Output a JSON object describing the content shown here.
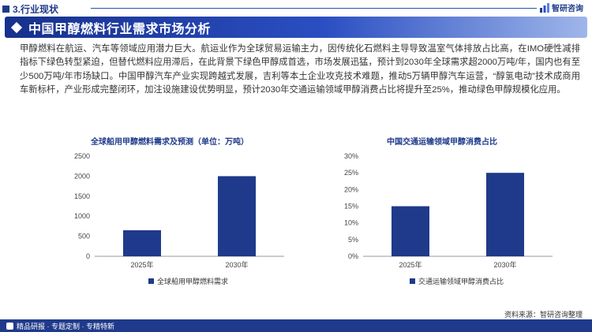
{
  "header": {
    "section_label": "3.行业现状",
    "logo_text": "智研咨询",
    "banner_title": "中国甲醇燃料行业需求市场分析"
  },
  "body_text": "甲醇燃料在航运、汽车等领域应用潜力巨大。航运业作为全球贸易运输主力，因传统化石燃料主导导致温室气体排放占比高，在IMO硬性减排指标下绿色转型紧迫，但替代燃料应用滞后，在此背景下绿色甲醇成首选，市场发展迅猛，预计到2030年全球需求超2000万吨/年，国内也有至少500万吨/年市场缺口。中国甲醇汽车产业实现跨越式发展，吉利等本土企业攻克技术难题，推动5万辆甲醇汽车运营，“醇氢电动”技术成商用车新标杆，产业形成完整闭环，加注设施建设优势明显，预计2030年交通运输领域甲醇消费占比将提升至25%，推动绿色甲醇规模化应用。",
  "chart_data": [
    {
      "type": "bar",
      "title": "全球船用甲醇燃料需求及预测（单位：万吨）",
      "categories": [
        "2025年",
        "2030年"
      ],
      "series": [
        {
          "name": "全球船用甲醇燃料需求",
          "values": [
            650,
            2000
          ]
        }
      ],
      "ylim": [
        0,
        2500
      ],
      "yticks": [
        "0",
        "500",
        "1000",
        "1500",
        "2000",
        "2500"
      ],
      "ytick_values": [
        0,
        500,
        1000,
        1500,
        2000,
        2500
      ],
      "grid": false,
      "legend": "bottom",
      "color": "#1f3a8a"
    },
    {
      "type": "bar",
      "title": "中国交通运输领域甲醇消费占比",
      "categories": [
        "2025年",
        "2030年"
      ],
      "series": [
        {
          "name": "交通运输领域甲醇消费占比",
          "values": [
            15,
            25
          ]
        }
      ],
      "ylim": [
        0,
        30
      ],
      "yticks": [
        "0%",
        "5%",
        "10%",
        "15%",
        "20%",
        "25%",
        "30%"
      ],
      "ytick_values": [
        0,
        5,
        10,
        15,
        20,
        25,
        30
      ],
      "grid": false,
      "legend": "bottom",
      "color": "#1f3a8a"
    }
  ],
  "footer": {
    "left_text": "精品研报 · 专题定制 · 专精特新",
    "source": "资料来源：智研咨询整理"
  }
}
